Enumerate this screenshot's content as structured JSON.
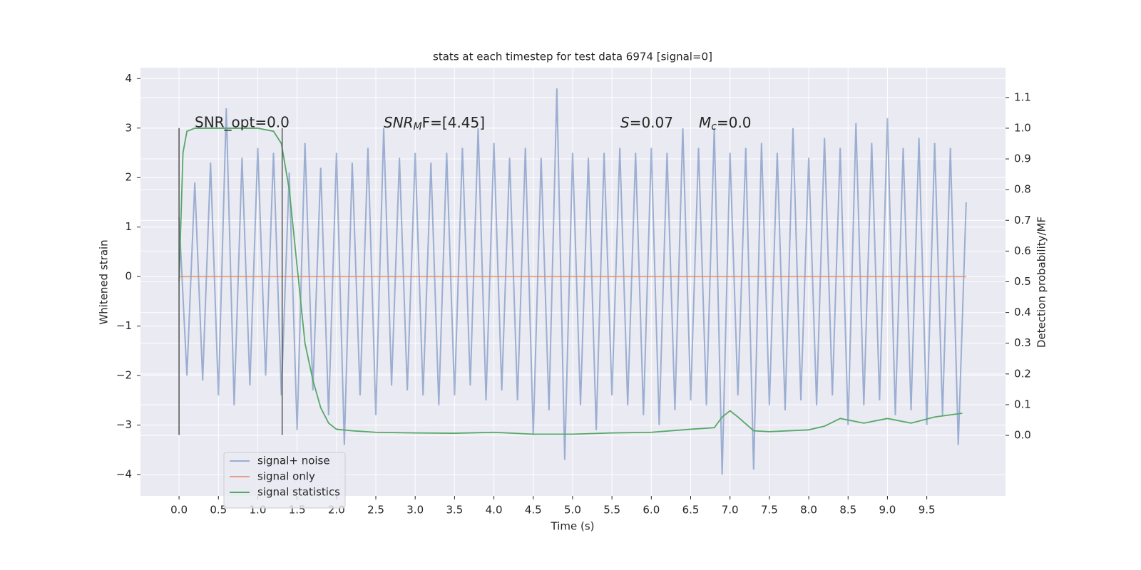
{
  "chart_data": {
    "type": "line",
    "title": "stats at each timestep for test data 6974 [signal=0]",
    "xlabel": "Time (s)",
    "ylabel": "Whitened strain",
    "y2label": "Detection probability/MF",
    "xlim": [
      -0.49,
      10.5
    ],
    "ylim": [
      -4.43,
      4.22
    ],
    "y2lim": [
      -0.197,
      1.197
    ],
    "xticks": [
      {
        "value": 0,
        "label": "0.0"
      },
      {
        "value": 0.5,
        "label": "0.5"
      },
      {
        "value": 1,
        "label": "1.0"
      },
      {
        "value": 1.5,
        "label": "1.5"
      },
      {
        "value": 2,
        "label": "2.0"
      },
      {
        "value": 2.5,
        "label": "2.5"
      },
      {
        "value": 3,
        "label": "3.0"
      },
      {
        "value": 3.5,
        "label": "3.5"
      },
      {
        "value": 4,
        "label": "4.0"
      },
      {
        "value": 4.5,
        "label": "4.5"
      },
      {
        "value": 5,
        "label": "5.0"
      },
      {
        "value": 5.5,
        "label": "5.5"
      },
      {
        "value": 6,
        "label": "6.0"
      },
      {
        "value": 6.5,
        "label": "6.5"
      },
      {
        "value": 7,
        "label": "7.0"
      },
      {
        "value": 7.5,
        "label": "7.5"
      },
      {
        "value": 8,
        "label": "8.0"
      },
      {
        "value": 8.5,
        "label": "8.5"
      },
      {
        "value": 9,
        "label": "9.0"
      },
      {
        "value": 9.5,
        "label": "9.5"
      }
    ],
    "yticks": [
      {
        "value": -4,
        "label": "−4"
      },
      {
        "value": -3,
        "label": "−3"
      },
      {
        "value": -2,
        "label": "−2"
      },
      {
        "value": -1,
        "label": "−1"
      },
      0,
      1,
      2,
      3,
      4
    ],
    "y2ticks": [
      {
        "value": 0,
        "label": "0.0"
      },
      {
        "value": 0.1,
        "label": "0.1"
      },
      {
        "value": 0.2,
        "label": "0.2"
      },
      {
        "value": 0.3,
        "label": "0.3"
      },
      {
        "value": 0.4,
        "label": "0.4"
      },
      {
        "value": 0.5,
        "label": "0.5"
      },
      {
        "value": 0.6,
        "label": "0.6"
      },
      {
        "value": 0.7,
        "label": "0.7"
      },
      {
        "value": 0.8,
        "label": "0.8"
      },
      {
        "value": 0.9,
        "label": "0.9"
      },
      {
        "value": 1,
        "label": "1.0"
      },
      {
        "value": 1.1,
        "label": "1.1"
      }
    ],
    "grid": true,
    "legend": "lower left",
    "series": [
      {
        "name": "signal+ noise",
        "color": "#4c72b0",
        "x": [
          0,
          0.1,
          0.2,
          0.3,
          0.4,
          0.5,
          0.6,
          0.7,
          0.8,
          0.9,
          1,
          1.1,
          1.2,
          1.3,
          1.4,
          1.5,
          1.6,
          1.7,
          1.8,
          1.9,
          2,
          2.1,
          2.2,
          2.3,
          2.4,
          2.5,
          2.6,
          2.7,
          2.8,
          2.9,
          3,
          3.1,
          3.2,
          3.3,
          3.4,
          3.5,
          3.6,
          3.7,
          3.8,
          3.9,
          4,
          4.1,
          4.2,
          4.3,
          4.4,
          4.5,
          4.6,
          4.7,
          4.8,
          4.9,
          5,
          5.1,
          5.2,
          5.3,
          5.4,
          5.5,
          5.6,
          5.7,
          5.8,
          5.9,
          6,
          6.1,
          6.2,
          6.3,
          6.4,
          6.5,
          6.6,
          6.7,
          6.8,
          6.9,
          7,
          7.1,
          7.2,
          7.3,
          7.4,
          7.5,
          7.6,
          7.7,
          7.8,
          7.9,
          8,
          8.1,
          8.2,
          8.3,
          8.4,
          8.5,
          8.6,
          8.7,
          8.8,
          8.9,
          9,
          9.1,
          9.2,
          9.3,
          9.4,
          9.5,
          9.6,
          9.7,
          9.8,
          9.9,
          10
        ],
        "values": [
          1.2,
          -2.0,
          1.9,
          -2.1,
          2.3,
          -2.4,
          3.4,
          -2.6,
          2.4,
          -2.2,
          2.6,
          -2.0,
          2.5,
          -2.4,
          2.1,
          -3.1,
          2.7,
          -2.3,
          2.2,
          -2.8,
          2.5,
          -3.4,
          2.3,
          -2.4,
          2.6,
          -2.8,
          3.0,
          -2.2,
          2.4,
          -2.3,
          2.5,
          -2.4,
          2.3,
          -2.6,
          2.5,
          -2.4,
          2.6,
          -2.2,
          3.0,
          -2.5,
          2.7,
          -2.3,
          2.4,
          -2.5,
          2.6,
          -3.2,
          2.4,
          -2.7,
          3.8,
          -3.7,
          2.5,
          -2.6,
          2.4,
          -3.1,
          2.5,
          -2.4,
          2.6,
          -2.6,
          2.5,
          -2.8,
          2.6,
          -3.0,
          2.5,
          -2.7,
          3.0,
          -2.5,
          2.6,
          -2.6,
          3.0,
          -4.0,
          2.5,
          -2.4,
          2.6,
          -3.9,
          2.7,
          -2.6,
          2.5,
          -2.7,
          3.0,
          -2.5,
          2.4,
          -2.6,
          2.8,
          -2.4,
          2.6,
          -3.0,
          3.1,
          -2.6,
          2.7,
          -2.5,
          3.2,
          -2.8,
          2.6,
          -2.7,
          2.8,
          -3.0,
          2.7,
          -2.8,
          2.6,
          -3.4,
          1.5
        ]
      },
      {
        "name": "signal only",
        "color": "#dd8452",
        "x": [
          0,
          10
        ],
        "values": [
          0,
          0
        ]
      },
      {
        "name": "signal statistics",
        "color": "#55a868",
        "axis": "y2",
        "x": [
          0,
          0.05,
          0.1,
          0.2,
          0.5,
          1.0,
          1.2,
          1.3,
          1.4,
          1.5,
          1.6,
          1.7,
          1.8,
          1.9,
          2.0,
          2.2,
          2.5,
          3.0,
          3.5,
          4.0,
          4.5,
          5.0,
          5.5,
          6.0,
          6.5,
          6.8,
          6.9,
          7.0,
          7.1,
          7.3,
          7.5,
          8.0,
          8.2,
          8.4,
          8.7,
          9.0,
          9.3,
          9.6,
          9.95
        ],
        "values": [
          0.5,
          0.92,
          0.99,
          1.0,
          1.0,
          1.0,
          0.99,
          0.95,
          0.8,
          0.55,
          0.3,
          0.18,
          0.09,
          0.04,
          0.02,
          0.015,
          0.01,
          0.008,
          0.007,
          0.01,
          0.004,
          0.004,
          0.008,
          0.01,
          0.02,
          0.025,
          0.06,
          0.08,
          0.06,
          0.015,
          0.012,
          0.018,
          0.03,
          0.055,
          0.04,
          0.055,
          0.04,
          0.06,
          0.072
        ]
      }
    ],
    "vlines": [
      {
        "x": 0,
        "ymin": -3.2,
        "ymax": 3.0,
        "color": "#555555"
      },
      {
        "x": 1.31,
        "ymin": -3.2,
        "ymax": 3.0,
        "color": "#555555"
      }
    ],
    "annotations": {
      "snr_opt": "SNR_opt=0.0",
      "snr_mf": {
        "base": "SNR",
        "sub": "M",
        "rest": "F=[4.45]"
      },
      "s": {
        "base": "S",
        "rest": "=0.07"
      },
      "mc": {
        "base": "M",
        "sub": "c",
        "rest": "=0.0"
      }
    }
  }
}
